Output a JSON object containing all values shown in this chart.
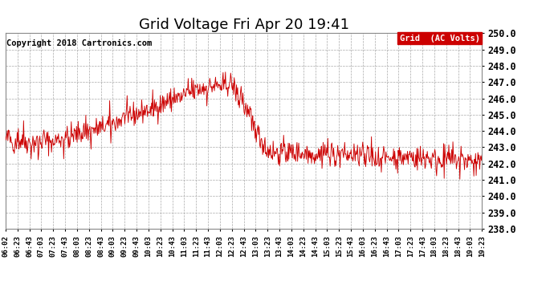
{
  "title": "Grid Voltage Fri Apr 20 19:41",
  "copyright": "Copyright 2018 Cartronics.com",
  "legend_label": "Grid  (AC Volts)",
  "legend_bg": "#cc0000",
  "line_color": "#cc0000",
  "bg_color": "#ffffff",
  "plot_bg_color": "#ffffff",
  "grid_color": "#aaaaaa",
  "ylim": [
    238.0,
    250.0
  ],
  "ytick_step": 1.0,
  "x_labels": [
    "06:02",
    "06:23",
    "06:43",
    "07:03",
    "07:23",
    "07:43",
    "08:03",
    "08:23",
    "08:43",
    "09:03",
    "09:23",
    "09:43",
    "10:03",
    "10:23",
    "10:43",
    "11:03",
    "11:23",
    "11:43",
    "12:03",
    "12:23",
    "12:43",
    "13:03",
    "13:23",
    "13:43",
    "14:03",
    "14:23",
    "14:43",
    "15:03",
    "15:23",
    "15:43",
    "16:03",
    "16:23",
    "16:43",
    "17:03",
    "17:23",
    "17:43",
    "18:03",
    "18:23",
    "18:43",
    "19:03",
    "19:23"
  ],
  "title_fontsize": 13,
  "copyright_fontsize": 7.5,
  "label_fontsize": 6.5,
  "ytick_fontsize": 8.5
}
